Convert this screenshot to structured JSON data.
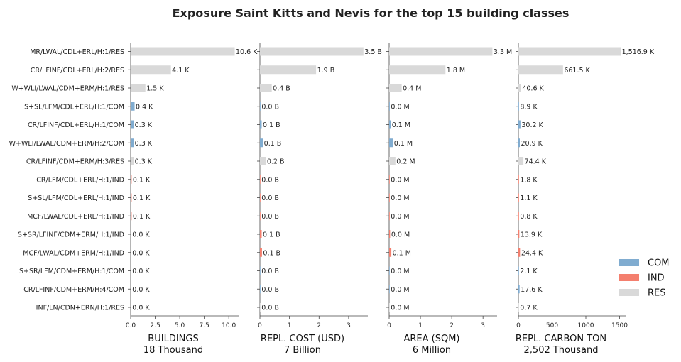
{
  "chart_data": {
    "type": "bar",
    "title": "Exposure Saint Kitts and Nevis for the top 15 building classes",
    "categories": [
      "MR/LWAL/CDL+ERL/H:1/RES",
      "CR/LFINF/CDL+ERL/H:2/RES",
      "W+WLI/LWAL/CDM+ERM/H:1/RES",
      "S+SL/LFM/CDL+ERL/H:1/COM",
      "CR/LFINF/CDL+ERL/H:1/COM",
      "W+WLI/LWAL/CDM+ERM/H:2/COM",
      "CR/LFINF/CDM+ERM/H:3/RES",
      "CR/LFM/CDL+ERL/H:1/IND",
      "S+SL/LFM/CDL+ERL/H:1/IND",
      "MCF/LWAL/CDL+ERL/H:1/IND",
      "S+SR/LFINF/CDM+ERM/H:1/IND",
      "MCF/LWAL/CDM+ERM/H:1/IND",
      "S+SR/LFM/CDM+ERM/H:1/COM",
      "CR/LFINF/CDM+ERM/H:4/COM",
      "INF/LN/CDN+ERN/H:1/RES"
    ],
    "occupancy": [
      "RES",
      "RES",
      "RES",
      "COM",
      "COM",
      "COM",
      "RES",
      "IND",
      "IND",
      "IND",
      "IND",
      "IND",
      "COM",
      "COM",
      "RES"
    ],
    "colors": {
      "COM": "#80acd0",
      "IND": "#f47f6e",
      "RES": "#d9d9d9"
    },
    "legend": {
      "position": "bottom-right",
      "items": [
        "COM",
        "IND",
        "RES"
      ]
    },
    "panels": [
      {
        "xlabel": "BUILDINGS",
        "total": "18 Thousand",
        "xlim": [
          0,
          11
        ],
        "ticks": [
          0,
          2.5,
          5,
          7.5,
          10
        ],
        "tick_labels": [
          "0.0",
          "2.5",
          "5.0",
          "7.5",
          "10.0"
        ],
        "values": [
          10.6,
          4.1,
          1.5,
          0.4,
          0.3,
          0.3,
          0.3,
          0.1,
          0.1,
          0.1,
          0.04,
          0.04,
          0.04,
          0.04,
          0.02
        ],
        "labels": [
          "10.6 K",
          "4.1 K",
          "1.5 K",
          "0.4 K",
          "0.3 K",
          "0.3 K",
          "0.3 K",
          "0.1 K",
          "0.1 K",
          "0.1 K",
          "0.0 K",
          "0.0 K",
          "0.0 K",
          "0.0 K",
          "0.0 K"
        ]
      },
      {
        "xlabel": "REPL. COST (USD)",
        "total": "7 Billion",
        "xlim": [
          0,
          3.65
        ],
        "ticks": [
          0,
          1,
          2,
          3
        ],
        "tick_labels": [
          "0",
          "1",
          "2",
          "3"
        ],
        "values": [
          3.5,
          1.9,
          0.4,
          0.02,
          0.06,
          0.1,
          0.2,
          0.01,
          0.01,
          0.01,
          0.06,
          0.07,
          0.01,
          0.02,
          0.0
        ],
        "labels": [
          "3.5 B",
          "1.9 B",
          "0.4 B",
          "0.0 B",
          "0.1 B",
          "0.1 B",
          "0.2 B",
          "0.0 B",
          "0.0 B",
          "0.0 B",
          "0.1 B",
          "0.1 B",
          "0.0 B",
          "0.0 B",
          "0.0 B"
        ]
      },
      {
        "xlabel": "AREA (SQM)",
        "total": "6 Million",
        "xlim": [
          0,
          3.45
        ],
        "ticks": [
          0,
          1,
          2,
          3
        ],
        "tick_labels": [
          "0",
          "1",
          "2",
          "3"
        ],
        "values": [
          3.3,
          1.8,
          0.4,
          0.02,
          0.05,
          0.12,
          0.2,
          0.0,
          0.0,
          0.0,
          0.03,
          0.07,
          0.0,
          0.01,
          0.0
        ],
        "labels": [
          "3.3 M",
          "1.8 M",
          "0.4 M",
          "0.0 M",
          "0.1 M",
          "0.1 M",
          "0.2 M",
          "0.0 M",
          "0.0 M",
          "0.0 M",
          "0.0 M",
          "0.1 M",
          "0.0 M",
          "0.0 M",
          "0.0 M"
        ]
      },
      {
        "xlabel": "REPL. CARBON TON",
        "total": "2,502 Thousand",
        "xlim": [
          0,
          1600
        ],
        "ticks": [
          0,
          500,
          1000,
          1500
        ],
        "tick_labels": [
          "0",
          "500",
          "1000",
          "1500"
        ],
        "values": [
          1516.9,
          661.5,
          40.6,
          8.9,
          30.2,
          20.9,
          74.4,
          1.8,
          1.1,
          0.8,
          13.9,
          24.4,
          2.1,
          17.6,
          0.7
        ],
        "labels": [
          "1,516.9 K",
          "661.5 K",
          "40.6 K",
          "8.9 K",
          "30.2 K",
          "20.9 K",
          "74.4 K",
          "1.8 K",
          "1.1 K",
          "0.8 K",
          "13.9 K",
          "24.4 K",
          "2.1 K",
          "17.6 K",
          "0.7 K"
        ]
      }
    ]
  }
}
